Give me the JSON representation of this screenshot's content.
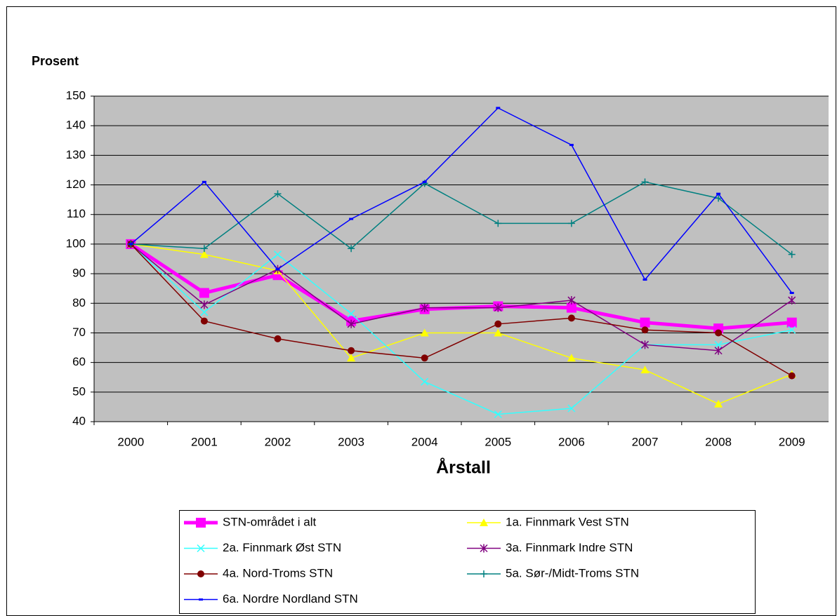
{
  "chart_data": {
    "type": "line",
    "ylabel": "Prosent",
    "xlabel": "Årstall",
    "categories": [
      "2000",
      "2001",
      "2002",
      "2003",
      "2004",
      "2005",
      "2006",
      "2007",
      "2008",
      "2009"
    ],
    "ylim": [
      40,
      150
    ],
    "yticks": [
      40,
      50,
      60,
      70,
      80,
      90,
      100,
      110,
      120,
      130,
      140,
      150
    ],
    "grid": true,
    "series": [
      {
        "name": "STN-området i alt",
        "color": "#ff00ff",
        "marker": "square",
        "values": [
          100,
          83.5,
          89.5,
          74,
          78,
          79,
          78.5,
          73.5,
          71.5,
          73.5
        ]
      },
      {
        "name": "1a. Finnmark Vest STN",
        "color": "#ffff00",
        "marker": "triangle",
        "values": [
          100,
          96.5,
          91,
          61.5,
          70,
          70,
          61.5,
          57.5,
          46,
          56
        ]
      },
      {
        "name": "2a.  Finnmark Øst STN",
        "color": "#33ffff",
        "marker": "x",
        "values": [
          100,
          77,
          96.5,
          76.5,
          53.5,
          42.5,
          44.5,
          66,
          66,
          71
        ]
      },
      {
        "name": "3a.  Finnmark Indre STN",
        "color": "#800080",
        "marker": "star",
        "values": [
          100,
          79.5,
          91.5,
          73,
          78.5,
          78.5,
          81,
          66,
          64,
          81
        ]
      },
      {
        "name": "4a.  Nord-Troms STN",
        "color": "#800000",
        "marker": "circle",
        "values": [
          100,
          74,
          68,
          64,
          61.5,
          73,
          75,
          71,
          70,
          55.5
        ]
      },
      {
        "name": "5a. Sør-/Midt-Troms STN",
        "color": "#008080",
        "marker": "plus",
        "values": [
          100,
          98.5,
          117,
          98.5,
          120.5,
          107,
          107,
          121,
          115.5,
          96.5
        ]
      },
      {
        "name": "6a. Nordre Nordland STN",
        "color": "#0000ff",
        "marker": "dash",
        "values": [
          100,
          121,
          91.5,
          108.5,
          121,
          146,
          133.5,
          88,
          117,
          83.5
        ]
      }
    ]
  }
}
